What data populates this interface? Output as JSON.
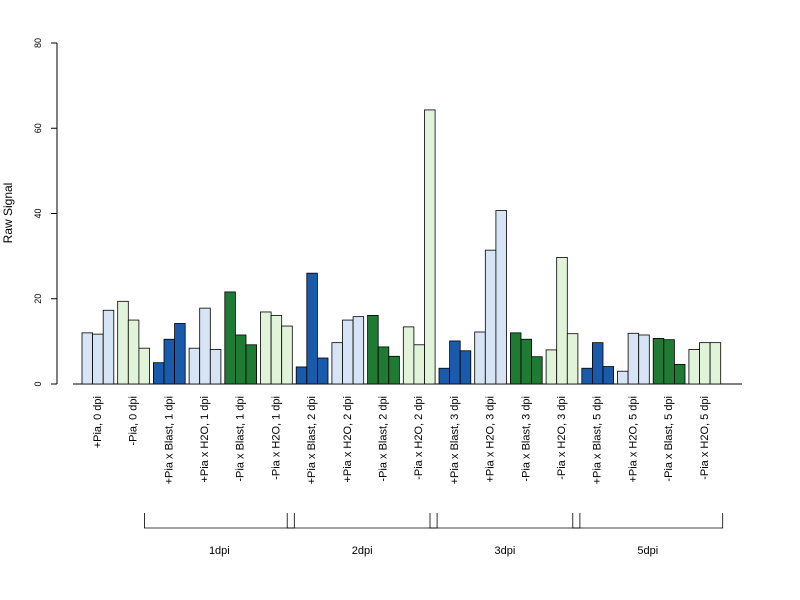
{
  "chart_data": {
    "type": "bar",
    "ylabel": "Raw Signal",
    "ylim": [
      0,
      80
    ],
    "yticks": [
      0,
      20,
      40,
      60,
      80
    ],
    "categories": [
      "+Pia, 0 dpi",
      "-Pia, 0 dpi",
      "+Pia x Blast, 1 dpi",
      "+Pia x H2O, 1 dpi",
      "-Pia x Blast, 1 dpi",
      "-Pia x H2O, 1 dpi",
      "+Pia x Blast, 2 dpi",
      "+Pia x H2O, 2 dpi",
      "-Pia x Blast, 2 dpi",
      "-Pia x H2O, 2 dpi",
      "+Pia x Blast, 3 dpi",
      "+Pia x H2O, 3 dpi",
      "-Pia x Blast, 3 dpi",
      "-Pia x H2O, 3 dpi",
      "+Pia x Blast, 5 dpi",
      "+Pia x H2O, 5 dpi",
      "-Pia x Blast, 5 dpi",
      "-Pia x H2O, 5 dpi"
    ],
    "replicates": [
      [
        12.0,
        11.7,
        17.3
      ],
      [
        19.4,
        15.0,
        8.4
      ],
      [
        5.0,
        10.5,
        14.2
      ],
      [
        8.4,
        17.8,
        8.1
      ],
      [
        21.6,
        11.5,
        9.2
      ],
      [
        16.9,
        16.1,
        13.6
      ],
      [
        4.0,
        26.0,
        6.1
      ],
      [
        9.7,
        15.0,
        15.8
      ],
      [
        16.1,
        8.7,
        6.5
      ],
      [
        13.4,
        9.2,
        64.3
      ],
      [
        3.7,
        10.1,
        7.8
      ],
      [
        12.2,
        31.4,
        40.7
      ],
      [
        12.0,
        10.5,
        6.4
      ],
      [
        8.0,
        29.7,
        11.8
      ],
      [
        3.7,
        9.7,
        4.1
      ],
      [
        3.0,
        11.9,
        11.5
      ],
      [
        10.7,
        10.4,
        4.6
      ],
      [
        8.1,
        9.7,
        9.7
      ]
    ],
    "colors": [
      "#d6e4f5",
      "#e1f4d9",
      "#1a5aaa",
      "#d6e4f5",
      "#1f7a34",
      "#e1f4d9",
      "#1a5aaa",
      "#d6e4f5",
      "#1f7a34",
      "#e1f4d9",
      "#1a5aaa",
      "#d6e4f5",
      "#1f7a34",
      "#e1f4d9",
      "#1a5aaa",
      "#d6e4f5",
      "#1f7a34",
      "#e1f4d9"
    ],
    "groups": [
      {
        "label": "1dpi",
        "from": 2,
        "to": 5
      },
      {
        "label": "2dpi",
        "from": 6,
        "to": 9
      },
      {
        "label": "3dpi",
        "from": 10,
        "to": 13
      },
      {
        "label": "5dpi",
        "from": 14,
        "to": 17
      }
    ],
    "grid": false,
    "legend": "none"
  }
}
